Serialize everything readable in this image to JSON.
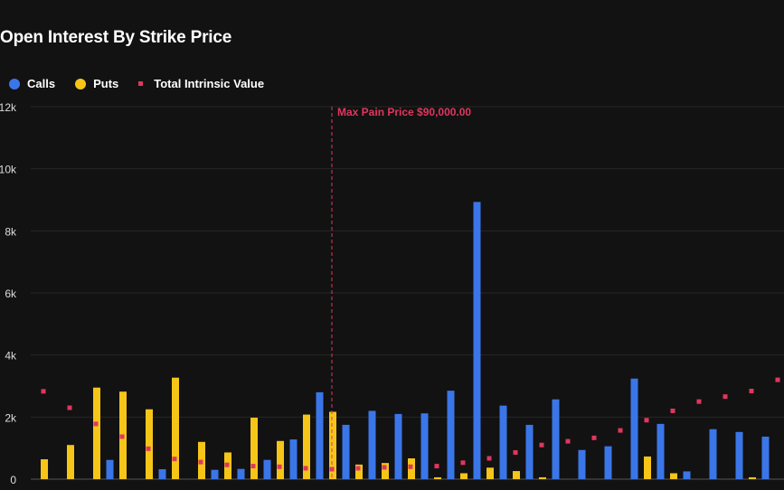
{
  "chart_data": {
    "type": "bar",
    "title": "Open Interest By Strike Price",
    "xlabel": "",
    "ylabel": "",
    "ylim": [
      0,
      12000
    ],
    "yticks": [
      {
        "v": 0,
        "label": "0"
      },
      {
        "v": 2000,
        "label": "2k"
      },
      {
        "v": 4000,
        "label": "4k"
      },
      {
        "v": 6000,
        "label": "6k"
      },
      {
        "v": 8000,
        "label": "8k"
      },
      {
        "v": 10000,
        "label": "10k"
      },
      {
        "v": 12000,
        "label": "12k"
      }
    ],
    "grid": true,
    "legend_position": "top-left",
    "max_pain": {
      "label": "Max Pain Price $90,000.00",
      "category_index": 11
    },
    "series": [
      {
        "name": "Calls",
        "color": "#3b76e8",
        "type": "bar",
        "values": [
          0,
          0,
          0,
          620,
          0,
          320,
          0,
          300,
          330,
          620,
          1280,
          2800,
          1750,
          2200,
          2100,
          2120,
          2850,
          8930,
          2370,
          1750,
          2570,
          940,
          1060,
          3240,
          1780,
          250,
          1610,
          1520,
          1370
        ]
      },
      {
        "name": "Puts",
        "color": "#f5c518",
        "type": "bar",
        "values": [
          640,
          1100,
          2950,
          2820,
          2250,
          3270,
          1200,
          860,
          1980,
          1230,
          2080,
          2170,
          470,
          520,
          670,
          60,
          190,
          370,
          260,
          60,
          0,
          0,
          0,
          730,
          190,
          0,
          0,
          60,
          0
        ]
      },
      {
        "name": "Total Intrinsic Value",
        "color": "#e0365f",
        "type": "scatter",
        "values": [
          2830,
          2300,
          1780,
          1370,
          980,
          650,
          550,
          460,
          420,
          400,
          350,
          320,
          350,
          380,
          400,
          420,
          530,
          670,
          860,
          1100,
          1220,
          1330,
          1570,
          1900,
          2200,
          2500,
          2660,
          2840,
          3200
        ]
      }
    ]
  }
}
